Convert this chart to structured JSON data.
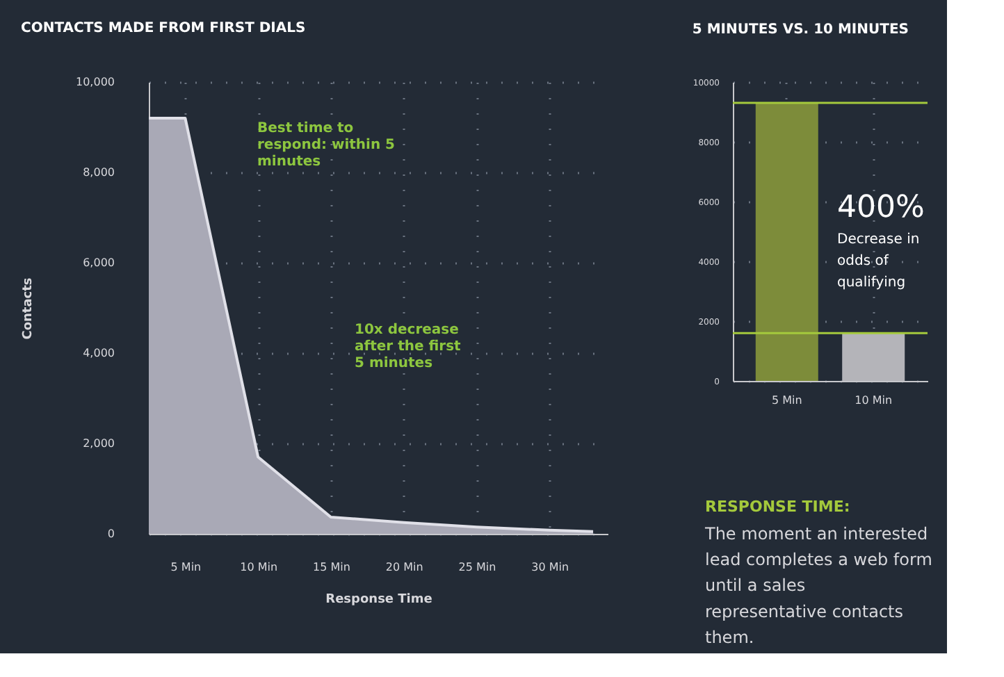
{
  "chart_data": [
    {
      "type": "area",
      "title": "CONTACTS MADE FROM FIRST DIALS",
      "xlabel": "Response Time",
      "ylabel": "Contacts",
      "x": [
        2.5,
        5,
        10,
        15,
        20,
        25,
        30,
        33
      ],
      "series": [
        {
          "color": "#a9a9b6",
          "values": [
            9200,
            9200,
            1700,
            370,
            250,
            150,
            80,
            50
          ]
        }
      ],
      "xlim": [
        2.5,
        34
      ],
      "xticks": [
        {
          "value": 5,
          "label": "5 Min"
        },
        {
          "value": 10,
          "label": "10 Min"
        },
        {
          "value": 15,
          "label": "15 Min"
        },
        {
          "value": 20,
          "label": "20 Min"
        },
        {
          "value": 25,
          "label": "25 Min"
        },
        {
          "value": 30,
          "label": "30 Min"
        }
      ],
      "ylim": [
        0,
        10000
      ],
      "yticks": [
        {
          "value": 0,
          "label": "0"
        },
        {
          "value": 2000,
          "label": "2,000"
        },
        {
          "value": 4000,
          "label": "4,000"
        },
        {
          "value": 6000,
          "label": "6,000"
        },
        {
          "value": 8000,
          "label": "8,000"
        },
        {
          "value": 10000,
          "label": "10,000"
        }
      ],
      "grid": true,
      "annotations": [
        "Best time to respond: within 5 minutes",
        "10x decrease after the first 5 minutes"
      ]
    },
    {
      "type": "bar",
      "title": "5 MINUTES VS. 10 MINUTES",
      "categories": [
        "5 Min",
        "10 Min"
      ],
      "values": [
        9300,
        1600
      ],
      "colors": [
        "#7d8c3a",
        "#b4b4b9"
      ],
      "ylim": [
        0,
        10000
      ],
      "yticks": [
        0,
        2000,
        4000,
        6000,
        8000,
        10000
      ],
      "grid": true,
      "ref_lines": [
        {
          "axis": "y",
          "value": 9300,
          "color": "#a4c93c"
        },
        {
          "axis": "y",
          "value": 1600,
          "color": "#a4c93c"
        }
      ],
      "annotations": [
        "400%",
        "Decrease in odds of qualifying",
        "RESPONSE TIME:",
        "The moment an interested lead completes a web form until a sales representative contacts them."
      ]
    }
  ]
}
